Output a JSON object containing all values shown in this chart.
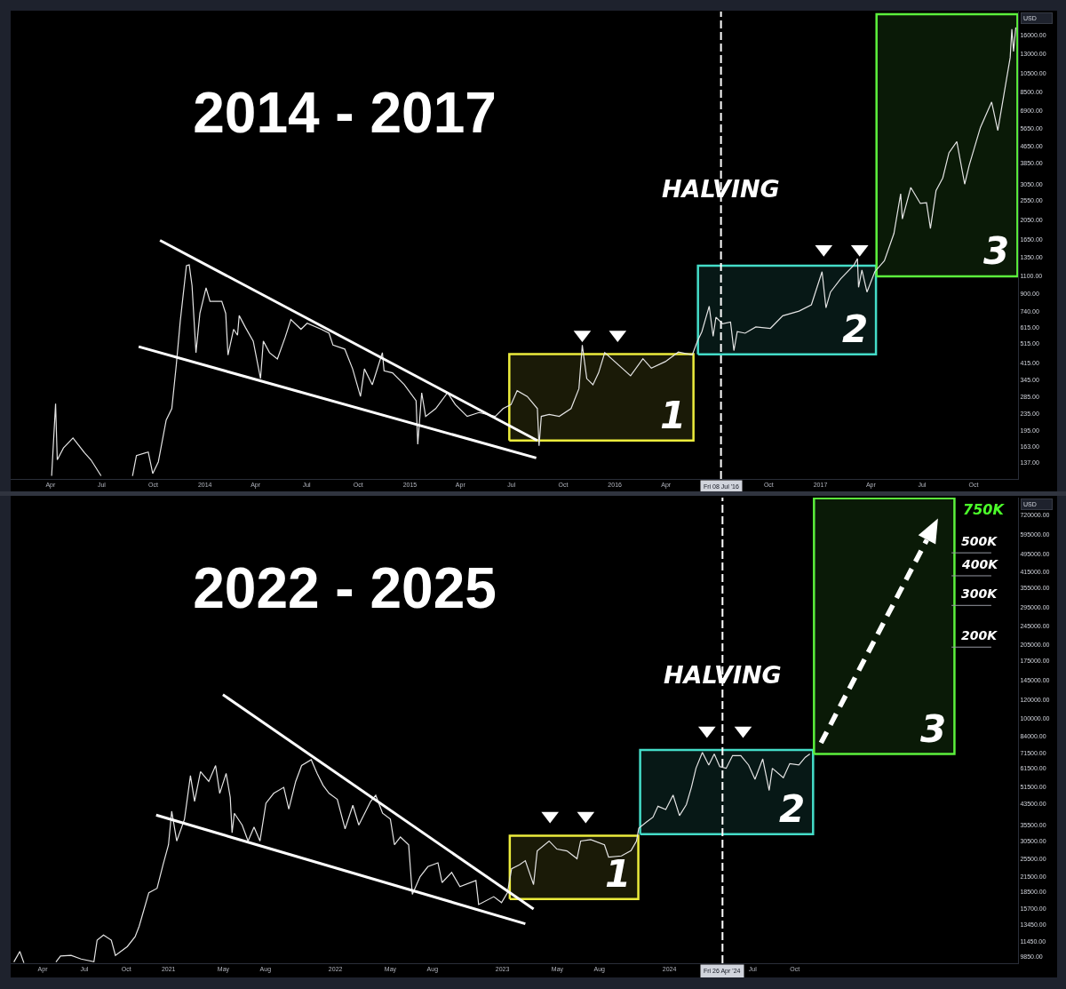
{
  "chart_data": [
    {
      "type": "line",
      "title": "2014 - 2017",
      "ylabel": "USD",
      "log": true,
      "xlim": [
        "2013-01-20",
        "2017-12-19"
      ],
      "xticks": [
        {
          "value": "2013-04-01",
          "label": "Apr"
        },
        {
          "value": "2013-07-01",
          "label": "Jul"
        },
        {
          "value": "2013-10-01",
          "label": "Oct"
        },
        {
          "value": "2014-01-01",
          "label": "2014"
        },
        {
          "value": "2014-04-01",
          "label": "Apr"
        },
        {
          "value": "2014-07-01",
          "label": "Jul"
        },
        {
          "value": "2014-10-01",
          "label": "Oct"
        },
        {
          "value": "2015-01-01",
          "label": "2015"
        },
        {
          "value": "2015-04-01",
          "label": "Apr"
        },
        {
          "value": "2015-07-01",
          "label": "Jul"
        },
        {
          "value": "2015-10-01",
          "label": "Oct"
        },
        {
          "value": "2016-01-01",
          "label": "2016"
        },
        {
          "value": "2016-04-01",
          "label": "Apr"
        },
        {
          "value": "2016-10-01",
          "label": "Oct"
        },
        {
          "value": "2017-01-01",
          "label": "2017"
        },
        {
          "value": "2017-04-01",
          "label": "Apr"
        },
        {
          "value": "2017-07-01",
          "label": "Jul"
        },
        {
          "value": "2017-10-01",
          "label": "Oct"
        }
      ],
      "ylim": [
        114,
        20900
      ],
      "yticks": [
        {
          "value": 137,
          "label": "137.00"
        },
        {
          "value": 163,
          "label": "163.00"
        },
        {
          "value": 195,
          "label": "195.00"
        },
        {
          "value": 235,
          "label": "235.00"
        },
        {
          "value": 285,
          "label": "285.00"
        },
        {
          "value": 345,
          "label": "345.00"
        },
        {
          "value": 415,
          "label": "415.00"
        },
        {
          "value": 515,
          "label": "515.00"
        },
        {
          "value": 615,
          "label": "615.00"
        },
        {
          "value": 740,
          "label": "740.00"
        },
        {
          "value": 900,
          "label": "900.00"
        },
        {
          "value": 1100,
          "label": "1100.00"
        },
        {
          "value": 1350,
          "label": "1350.00"
        },
        {
          "value": 1650,
          "label": "1650.00"
        },
        {
          "value": 2050,
          "label": "2050.00"
        },
        {
          "value": 2550,
          "label": "2550.00"
        },
        {
          "value": 3050,
          "label": "3050.00"
        },
        {
          "value": 3850,
          "label": "3850.00"
        },
        {
          "value": 4650,
          "label": "4650.00"
        },
        {
          "value": 5650,
          "label": "5650.00"
        },
        {
          "value": 6900,
          "label": "6900.00"
        },
        {
          "value": 8500,
          "label": "8500.00"
        },
        {
          "value": 10500,
          "label": "10500.00"
        },
        {
          "value": 13000,
          "label": "13000.00"
        },
        {
          "value": 16000,
          "label": "16000.00"
        }
      ],
      "series": [
        {
          "type": "area",
          "name": "1",
          "color": "#ecec3c",
          "x": [
            "2015-06-27",
            "2016-05-20",
            "2016-05-20",
            "2015-06-27",
            "2015-06-27"
          ],
          "values": [
            175,
            175,
            459,
            459,
            175
          ]
        },
        {
          "type": "area",
          "name": "2",
          "color": "#44dcc8",
          "x": [
            "2016-05-28",
            "2017-04-10",
            "2017-04-10",
            "2016-05-28",
            "2016-05-28"
          ],
          "values": [
            457,
            457,
            1230,
            1230,
            457
          ]
        },
        {
          "type": "area",
          "name": "3",
          "color": "#5cf03c",
          "x": [
            "2017-04-11",
            "2017-12-18",
            "2017-12-18",
            "2017-04-11",
            "2017-04-11"
          ],
          "values": [
            1090,
            1090,
            20300,
            20300,
            1090
          ]
        },
        {
          "type": "line",
          "color": "#e4e4e4",
          "x": [
            "2013-04-03",
            "2013-04-10",
            "2013-04-13",
            "2013-04-24",
            "2013-05-11",
            "2013-06-01",
            "2013-06-12",
            "2013-06-30",
            "2013-07-31",
            "2013-08-25",
            "2013-09-01",
            "2013-09-22",
            "2013-09-30",
            "2013-10-10",
            "2013-10-24",
            "2013-11-03",
            "2013-11-11",
            "2013-11-18",
            "2013-11-29",
            "2013-12-04",
            "2013-12-09",
            "2013-12-16",
            "2013-12-23",
            "2014-01-03",
            "2014-01-10",
            "2014-01-31",
            "2014-02-07",
            "2014-02-11",
            "2014-02-21",
            "2014-02-28",
            "2014-03-03",
            "2014-03-14",
            "2014-03-28",
            "2014-04-10",
            "2014-04-15",
            "2014-04-26",
            "2014-05-10",
            "2014-05-24",
            "2014-06-03",
            "2014-06-21",
            "2014-07-02",
            "2014-07-27",
            "2014-08-10",
            "2014-08-17",
            "2014-09-07",
            "2014-09-21",
            "2014-10-05",
            "2014-10-12",
            "2014-10-26",
            "2014-11-13",
            "2014-11-16",
            "2014-12-01",
            "2014-12-22",
            "2015-01-12",
            "2015-01-15",
            "2015-01-22",
            "2015-01-29",
            "2015-02-16",
            "2015-03-09",
            "2015-03-23",
            "2015-04-13",
            "2015-05-04",
            "2015-06-02",
            "2015-06-16",
            "2015-06-30",
            "2015-07-11",
            "2015-07-29",
            "2015-08-16",
            "2015-08-19",
            "2015-08-23",
            "2015-09-06",
            "2015-09-24",
            "2015-10-15",
            "2015-10-29",
            "2015-11-04",
            "2015-11-12",
            "2015-11-23",
            "2015-12-03",
            "2015-12-14",
            "2016-01-14",
            "2016-01-29",
            "2016-02-20",
            "2016-03-06",
            "2016-03-31",
            "2016-04-23",
            "2016-05-18",
            "2016-05-27",
            "2016-06-04",
            "2016-06-17",
            "2016-06-24",
            "2016-06-29",
            "2016-07-11",
            "2016-07-25",
            "2016-07-31",
            "2016-08-06",
            "2016-08-20",
            "2016-09-08",
            "2016-10-04",
            "2016-10-26",
            "2016-11-24",
            "2016-12-16",
            "2017-01-04",
            "2017-01-11",
            "2017-01-19",
            "2017-02-06",
            "2017-03-02",
            "2017-03-08",
            "2017-03-10",
            "2017-03-16",
            "2017-03-25",
            "2017-04-08",
            "2017-04-25",
            "2017-05-12",
            "2017-05-24",
            "2017-05-27",
            "2017-06-11",
            "2017-06-28",
            "2017-07-09",
            "2017-07-16",
            "2017-07-26",
            "2017-08-07",
            "2017-08-18",
            "2017-09-01",
            "2017-09-15",
            "2017-09-23",
            "2017-10-13",
            "2017-11-02",
            "2017-11-13",
            "2017-11-24",
            "2017-12-05",
            "2017-12-08",
            "2017-12-11",
            "2017-12-15"
          ],
          "values": [
            118,
            264,
            141,
            161,
            180,
            152,
            141,
            118,
            null,
            118,
            148,
            154,
            121,
            138,
            220,
            250,
            407,
            661,
            1230,
            1240,
            984,
            466,
            722,
            961,
            826,
            826,
            722,
            454,
            605,
            566,
            705,
            618,
            530,
            349,
            530,
            466,
            434,
            554,
            675,
            605,
            647,
            605,
            579,
            507,
            485,
            389,
            286,
            389,
            326,
            466,
            381,
            372,
            326,
            273,
            168,
            298,
            229,
            250,
            298,
            261,
            229,
            239,
            229,
            250,
            261,
            305,
            286,
            250,
            165,
            229,
            234,
            229,
            250,
            312,
            507,
            349,
            326,
            372,
            466,
            392,
            360,
            436,
            392,
            422,
            469,
            455,
            530,
            589,
            782,
            559,
            692,
            643,
            656,
            477,
            589,
            579,
            621,
            611,
            703,
            741,
            795,
            1150,
            768,
            916,
            1060,
            1240,
            1330,
            966,
            1170,
            916,
            1150,
            1300,
            1760,
            2740,
            2070,
            2940,
            2460,
            2480,
            1860,
            2840,
            3270,
            4330,
            4900,
            3050,
            3760,
            5740,
            7620,
            5550,
            8320,
            12500,
            17200,
            13400,
            17500
          ]
        },
        {
          "type": "line",
          "color": "#ffffff",
          "x": [
            "2013-10-13",
            "2015-08-16"
          ],
          "values": [
            1630,
            175
          ]
        },
        {
          "type": "line",
          "color": "#ffffff",
          "x": [
            "2013-09-05",
            "2015-08-14"
          ],
          "values": [
            498,
            144
          ]
        },
        {
          "type": "scatter",
          "marker": "triangle",
          "color": "#ffffff",
          "x": [
            "2015-11-04",
            "2016-01-06",
            "2017-01-07",
            "2017-03-12"
          ],
          "values": [
            571,
            571,
            1480,
            1480
          ]
        }
      ],
      "ref_lines": [
        {
          "axis": "x",
          "value": "2016-07-08",
          "label": "HALVING",
          "color": "#ffffff",
          "line_style": "dashed"
        }
      ],
      "annotations": [
        "Fri 08 Jul '16"
      ]
    },
    {
      "type": "line",
      "title": "2022 - 2025",
      "ylabel": "USD",
      "log": true,
      "xlim": [
        "2020-01-22",
        "2026-02-01"
      ],
      "xticks": [
        {
          "value": "2020-04-01",
          "label": "Apr"
        },
        {
          "value": "2020-07-01",
          "label": "Jul"
        },
        {
          "value": "2020-10-01",
          "label": "Oct"
        },
        {
          "value": "2021-01-01",
          "label": "2021"
        },
        {
          "value": "2021-05-01",
          "label": "May"
        },
        {
          "value": "2021-08-01",
          "label": "Aug"
        },
        {
          "value": "2022-01-01",
          "label": "2022"
        },
        {
          "value": "2022-05-01",
          "label": "May"
        },
        {
          "value": "2022-08-01",
          "label": "Aug"
        },
        {
          "value": "2023-01-01",
          "label": "2023"
        },
        {
          "value": "2023-05-01",
          "label": "May"
        },
        {
          "value": "2023-08-01",
          "label": "Aug"
        },
        {
          "value": "2024-01-01",
          "label": "2024"
        },
        {
          "value": "2024-07-01",
          "label": "Jul"
        },
        {
          "value": "2024-10-01",
          "label": "Oct"
        }
      ],
      "ylim": [
        9270,
        855000
      ],
      "yticks": [
        {
          "value": 9850,
          "label": "9850.00"
        },
        {
          "value": 11450,
          "label": "11450.00"
        },
        {
          "value": 13450,
          "label": "13450.00"
        },
        {
          "value": 15700,
          "label": "15700.00"
        },
        {
          "value": 18500,
          "label": "18500.00"
        },
        {
          "value": 21500,
          "label": "21500.00"
        },
        {
          "value": 25500,
          "label": "25500.00"
        },
        {
          "value": 30500,
          "label": "30500.00"
        },
        {
          "value": 35500,
          "label": "35500.00"
        },
        {
          "value": 43500,
          "label": "43500.00"
        },
        {
          "value": 51500,
          "label": "51500.00"
        },
        {
          "value": 61500,
          "label": "61500.00"
        },
        {
          "value": 71500,
          "label": "71500.00"
        },
        {
          "value": 84000,
          "label": "84000.00"
        },
        {
          "value": 100000,
          "label": "100000.00"
        },
        {
          "value": 120000,
          "label": "120000.00"
        },
        {
          "value": 145000,
          "label": "145000.00"
        },
        {
          "value": 175000,
          "label": "175000.00"
        },
        {
          "value": 205000,
          "label": "205000.00"
        },
        {
          "value": 245000,
          "label": "245000.00"
        },
        {
          "value": 295000,
          "label": "295000.00"
        },
        {
          "value": 355000,
          "label": "355000.00"
        },
        {
          "value": 415000,
          "label": "415000.00"
        },
        {
          "value": 495000,
          "label": "495000.00"
        },
        {
          "value": 595000,
          "label": "595000.00"
        },
        {
          "value": 720000,
          "label": "720000.00"
        }
      ],
      "series": [
        {
          "type": "area",
          "name": "1",
          "color": "#ecec3c",
          "x": [
            "2023-01-17",
            "2023-10-25",
            "2023-10-25",
            "2023-01-17",
            "2023-01-17"
          ],
          "values": [
            17300,
            17300,
            32000,
            32000,
            17300
          ]
        },
        {
          "type": "area",
          "name": "2",
          "color": "#44dcc8",
          "x": [
            "2023-10-29",
            "2024-11-10",
            "2024-11-10",
            "2023-10-29",
            "2023-10-29"
          ],
          "values": [
            32500,
            32500,
            73600,
            73600,
            32500
          ]
        },
        {
          "type": "area",
          "name": "3",
          "color": "#5cf03c",
          "x": [
            "2024-11-12",
            "2025-09-15",
            "2025-09-15",
            "2024-11-12",
            "2024-11-12"
          ],
          "values": [
            70800,
            70800,
            850000,
            850000,
            70800
          ]
        },
        {
          "type": "line",
          "color": "#e4e4e4",
          "x": [
            "2020-01-29",
            "2020-02-11",
            "2020-02-20",
            "2020-03-31",
            "2020-04-30",
            "2020-05-10",
            "2020-06-02",
            "2020-06-24",
            "2020-07-22",
            "2020-07-29",
            "2020-08-12",
            "2020-08-29",
            "2020-09-07",
            "2020-10-03",
            "2020-10-20",
            "2020-10-29",
            "2020-11-19",
            "2020-12-07",
            "2020-12-20",
            "2021-01-01",
            "2021-01-08",
            "2021-01-19",
            "2021-02-05",
            "2021-02-18",
            "2021-02-27",
            "2021-03-12",
            "2021-03-30",
            "2021-04-14",
            "2021-04-23",
            "2021-05-07",
            "2021-05-16",
            "2021-05-20",
            "2021-05-25",
            "2021-06-11",
            "2021-06-24",
            "2021-07-07",
            "2021-07-20",
            "2021-08-02",
            "2021-08-19",
            "2021-09-10",
            "2021-09-21",
            "2021-10-06",
            "2021-10-19",
            "2021-11-09",
            "2021-11-22",
            "2021-12-05",
            "2021-12-18",
            "2022-01-05",
            "2022-01-22",
            "2022-02-08",
            "2022-02-21",
            "2022-03-19",
            "2022-03-30",
            "2022-04-14",
            "2022-05-01",
            "2022-05-10",
            "2022-05-23",
            "2022-06-10",
            "2022-06-18",
            "2022-07-05",
            "2022-07-22",
            "2022-08-13",
            "2022-08-22",
            "2022-09-12",
            "2022-09-30",
            "2022-11-04",
            "2022-11-10",
            "2022-12-13",
            "2022-12-30",
            "2023-01-12",
            "2023-01-21",
            "2023-02-07",
            "2023-02-20",
            "2023-03-10",
            "2023-03-18",
            "2023-04-13",
            "2023-04-30",
            "2023-05-22",
            "2023-06-13",
            "2023-06-21",
            "2023-07-13",
            "2023-08-12",
            "2023-08-21",
            "2023-09-18",
            "2023-10-09",
            "2023-10-21",
            "2023-10-26",
            "2023-11-12",
            "2023-11-26",
            "2023-12-07",
            "2023-12-24",
            "2024-01-09",
            "2024-01-23",
            "2024-02-07",
            "2024-02-18",
            "2024-02-28",
            "2024-03-13",
            "2024-03-27",
            "2024-04-08",
            "2024-04-20",
            "2024-05-04",
            "2024-05-18",
            "2024-06-05",
            "2024-06-22",
            "2024-07-06",
            "2024-07-23",
            "2024-08-06",
            "2024-08-13",
            "2024-09-06",
            "2024-09-20",
            "2024-10-10",
            "2024-10-24",
            "2024-11-03"
          ],
          "values": [
            9380,
            10400,
            9300,
            null,
            9380,
            9940,
            10000,
            9660,
            9400,
            11600,
            12200,
            11600,
            10000,
            10900,
            12000,
            13300,
            18400,
            19200,
            24100,
            29300,
            40600,
            30400,
            37600,
            57400,
            44700,
            59700,
            54200,
            63300,
            48300,
            58600,
            46500,
            32900,
            39800,
            35500,
            30400,
            34800,
            30400,
            43900,
            48300,
            51200,
            41400,
            54200,
            63300,
            67000,
            58600,
            52200,
            48300,
            45600,
            34200,
            43000,
            35500,
            44700,
            47400,
            39800,
            37600,
            29300,
            31600,
            29300,
            18100,
            21500,
            23700,
            24600,
            20300,
            22400,
            19500,
            20700,
            16400,
            17700,
            16700,
            18400,
            23200,
            24100,
            25100,
            19900,
            27600,
            30400,
            28100,
            27600,
            25600,
            30400,
            30800,
            29300,
            26000,
            26300,
            27700,
            30400,
            34400,
            36600,
            38300,
            42600,
            41300,
            47500,
            38900,
            43300,
            51200,
            61600,
            71900,
            63600,
            70800,
            62600,
            61600,
            69700,
            69700,
            63600,
            55400,
            67500,
            49700,
            61600,
            56200,
            64500,
            63600,
            68600,
            70800
          ]
        },
        {
          "type": "line",
          "color": "#ffffff",
          "x": [
            "2021-04-30",
            "2023-03-10"
          ],
          "values": [
            126000,
            15700
          ]
        },
        {
          "type": "line",
          "color": "#ffffff",
          "x": [
            "2020-12-05",
            "2023-02-20"
          ],
          "values": [
            39100,
            13600
          ]
        },
        {
          "type": "scatter",
          "marker": "triangle",
          "color": "#ffffff",
          "x": [
            "2023-04-15",
            "2023-07-02",
            "2024-03-23",
            "2024-06-10"
          ],
          "values": [
            38900,
            38900,
            89100,
            89100
          ]
        }
      ],
      "ref_lines": [
        {
          "axis": "x",
          "value": "2024-04-26",
          "label": "HALVING",
          "color": "#ffffff",
          "line_style": "dashed"
        },
        {
          "axis": "y",
          "value": 500000,
          "label": "500K",
          "color": "#9598a1"
        },
        {
          "axis": "y",
          "value": 400000,
          "label": "400K",
          "color": "#9598a1"
        },
        {
          "axis": "y",
          "value": 300000,
          "label": "300K",
          "color": "#9598a1"
        },
        {
          "axis": "y",
          "value": 200000,
          "label": "200K",
          "color": "#9598a1"
        }
      ],
      "annotations": [
        "Fri 26 Apr '24",
        "750K"
      ]
    }
  ]
}
